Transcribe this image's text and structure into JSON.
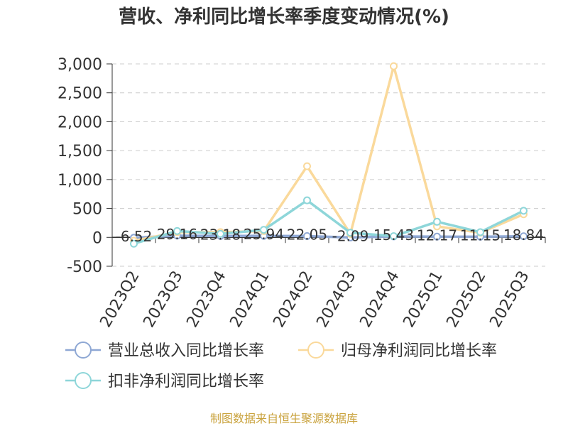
{
  "chart_data": {
    "type": "line",
    "title": "营收、净利同比增长率季度变动情况(%)",
    "xlabel": "",
    "ylabel": "",
    "categories": [
      "2023Q2",
      "2023Q3",
      "2023Q4",
      "2024Q1",
      "2024Q2",
      "2024Q3",
      "2024Q4",
      "2025Q1",
      "2025Q2",
      "2025Q3"
    ],
    "ylim": [
      -500,
      3000
    ],
    "yticks": [
      -500,
      0,
      500,
      1000,
      1500,
      2000,
      2500,
      3000
    ],
    "ytick_labels": [
      "-500",
      "0",
      "500",
      "1,000",
      "1,500",
      "2,000",
      "2,500",
      "3,000"
    ],
    "grid": true,
    "legend_position": "bottom",
    "series": [
      {
        "name": "营业总收入同比增长率",
        "color": "#8fa8d4",
        "values": [
          -6.52,
          29.16,
          23.18,
          25.94,
          22.05,
          -2.09,
          15.43,
          12.17,
          11.15,
          18.84
        ],
        "labels": [
          "-6.52",
          "29.16",
          "23.18",
          "25.94",
          "22.05",
          "-2.09",
          "15.43",
          "12.17",
          "11.15",
          "18.84"
        ]
      },
      {
        "name": "归母净利润同比增长率",
        "color": "#fad99b",
        "values": [
          -60,
          90,
          90,
          110,
          1230,
          60,
          2960,
          190,
          80,
          400
        ]
      },
      {
        "name": "扣非净利润同比增长率",
        "color": "#8ed6d9",
        "values": [
          -110,
          110,
          60,
          130,
          640,
          80,
          20,
          270,
          90,
          460
        ]
      }
    ]
  },
  "footer": {
    "source": "制图数据来自恒生聚源数据库",
    "source_color": "#c9a23c"
  }
}
